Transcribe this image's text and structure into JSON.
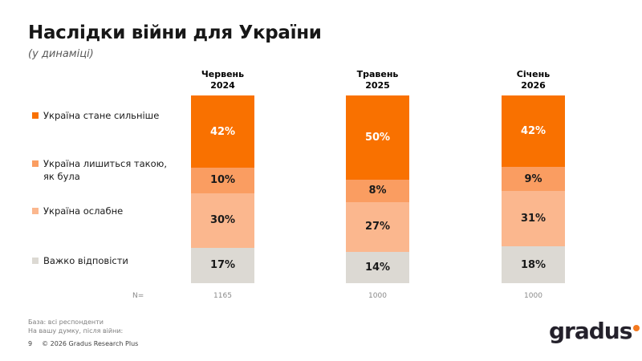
{
  "slide": {
    "title": "Наслідки війни для України",
    "subtitle": "(у динаміці)"
  },
  "legend": {
    "items": [
      {
        "lines": [
          "Україна стане сильніше"
        ],
        "color": "#f97100"
      },
      {
        "lines": [
          "Україна лишиться такою,",
          "як була"
        ],
        "color": "#fa9d61"
      },
      {
        "lines": [
          "Україна ослабне"
        ],
        "color": "#fbb78e"
      },
      {
        "lines": [
          "Важко відповісти"
        ],
        "color": "#dcd9d3"
      }
    ]
  },
  "chart_data": {
    "type": "bar",
    "stacked": true,
    "title": "Наслідки війни для України (у динаміці)",
    "unit": "%",
    "categories": [
      "Червень 2024",
      "Травень 2025",
      "Січень 2026"
    ],
    "category_lines": [
      [
        "Червень",
        "2024"
      ],
      [
        "Травень",
        "2025"
      ],
      [
        "Січень",
        "2026"
      ]
    ],
    "series": [
      {
        "name": "Україна стане сильніше",
        "color": "#f97100",
        "label_color": "#ffffff",
        "values": [
          42,
          50,
          42
        ]
      },
      {
        "name": "Україна лишиться такою, як була",
        "color": "#fa9d61",
        "label_color": "#1a1a1a",
        "values": [
          10,
          8,
          9
        ]
      },
      {
        "name": "Україна ослабне",
        "color": "#fbb78e",
        "label_color": "#1a1a1a",
        "values": [
          30,
          27,
          31
        ]
      },
      {
        "name": "Важко відповісти",
        "color": "#dcd9d3",
        "label_color": "#1a1a1a",
        "values": [
          17,
          14,
          18
        ]
      }
    ],
    "value_suffix": "%",
    "n_label": "N=",
    "n_values": [
      "1165",
      "1000",
      "1000"
    ],
    "legend_position": "left",
    "grid": false,
    "ylim": [
      0,
      100
    ]
  },
  "footer": {
    "base_note": "База: всі респонденти",
    "question_note": "На вашу думку, після війни:",
    "page_number": "9",
    "copyright": "© 2026 Gradus Research Plus"
  },
  "logo": {
    "text": "gradus",
    "text_color": "#24212b",
    "dot_color": "#f4791f"
  }
}
